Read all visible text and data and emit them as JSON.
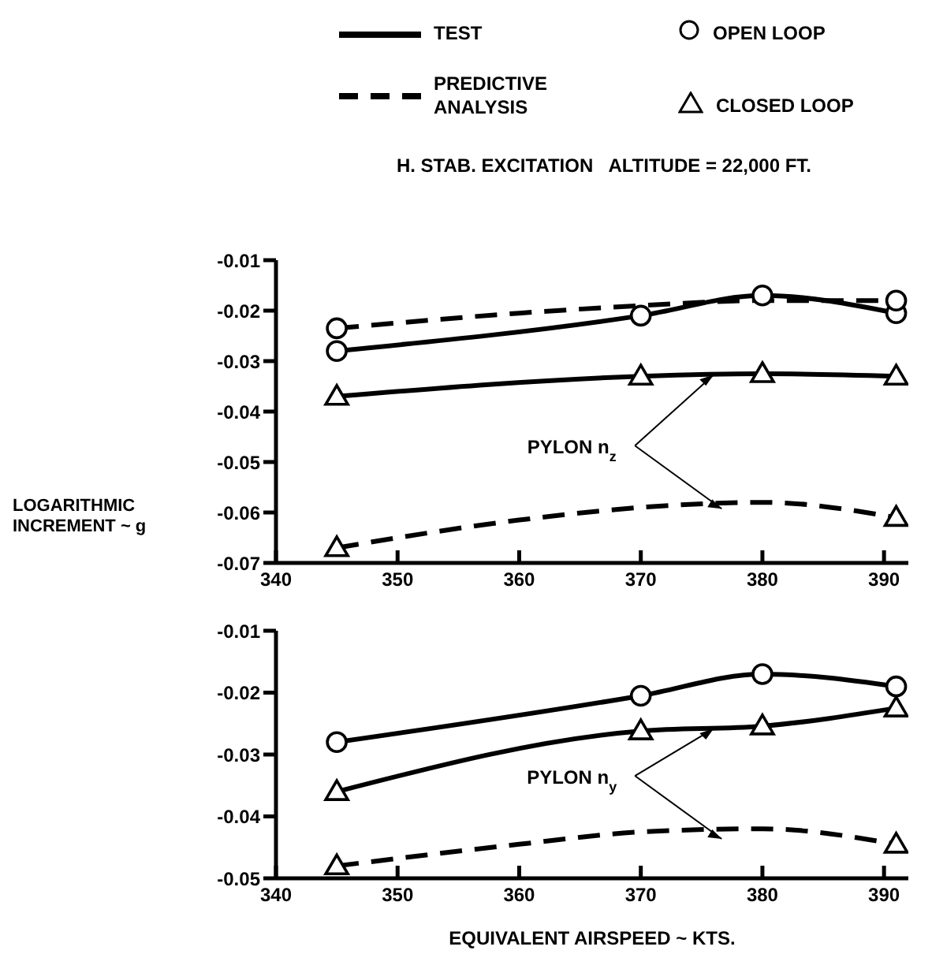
{
  "chart_data": [
    {
      "type": "line",
      "title": "H. STAB. EXCITATION   ALTITUDE = 22,000 FT.",
      "ylabel": "LOGARITHMIC INCREMENT ~ g",
      "annotations": [
        "TEST",
        "PREDICTIVE ANALYSIS",
        "OPEN LOOP",
        "CLOSED LOOP",
        {
          "text": "PYLON n$_{z}$",
          "x": 376,
          "y": -0.0327
        }
      ],
      "xlim": [
        340,
        392
      ],
      "xticks": [
        340,
        350,
        360,
        370,
        380,
        390
      ],
      "ylim": [
        -0.07,
        -0.01
      ],
      "yticks": [
        -0.01,
        -0.02,
        -0.03,
        -0.04,
        -0.05,
        -0.06,
        -0.07
      ],
      "grid": false,
      "series": [
        {
          "color": "#000000",
          "x": [
            345,
            370,
            380,
            391
          ],
          "values": [
            -0.028,
            -0.021,
            -0.017,
            -0.0205
          ],
          "line_style": "solid",
          "marker": "circle"
        },
        {
          "color": "#000000",
          "x": [
            345,
            370,
            380,
            391
          ],
          "values": [
            -0.037,
            -0.033,
            -0.0325,
            -0.033
          ],
          "line_style": "solid",
          "marker": "triangle"
        },
        {
          "color": "#000000",
          "x": [
            345,
            360,
            370,
            380,
            391
          ],
          "values": [
            -0.0235,
            -0.0205,
            -0.019,
            -0.018,
            -0.018
          ],
          "line_style": "dashed",
          "marker": "none"
        },
        {
          "color": "#000000",
          "x": [
            345,
            360,
            370,
            380,
            391
          ],
          "values": [
            -0.067,
            -0.0615,
            -0.059,
            -0.058,
            -0.061
          ],
          "line_style": "dashed",
          "marker": "none"
        },
        {
          "type": "scatter",
          "color": "#000000",
          "x": [
            345,
            391
          ],
          "values": [
            -0.0235,
            -0.018
          ],
          "marker": "circle"
        },
        {
          "type": "scatter",
          "color": "#000000",
          "x": [
            345,
            391
          ],
          "values": [
            -0.067,
            -0.061
          ],
          "marker": "triangle"
        }
      ]
    },
    {
      "type": "line",
      "xlabel": "EQUIVALENT AIRSPEED ~ KTS.",
      "annotations": [
        {
          "text": "PYLON n$_{y}$",
          "x": 376,
          "y": -0.0258
        }
      ],
      "xlim": [
        340,
        392
      ],
      "xticks": [
        340,
        350,
        360,
        370,
        380,
        390
      ],
      "ylim": [
        -0.05,
        -0.01
      ],
      "yticks": [
        -0.01,
        -0.02,
        -0.03,
        -0.04,
        -0.05
      ],
      "grid": false,
      "series": [
        {
          "color": "#000000",
          "x": [
            345,
            370,
            380,
            391
          ],
          "values": [
            -0.028,
            -0.0205,
            -0.017,
            -0.019
          ],
          "line_style": "solid",
          "marker": "circle"
        },
        {
          "color": "#000000",
          "x": [
            345,
            370,
            380,
            391
          ],
          "values": [
            -0.036,
            -0.0262,
            -0.0254,
            -0.0225
          ],
          "line_style": "solid",
          "marker": "triangle"
        },
        {
          "color": "#000000",
          "x": [
            345,
            360,
            370,
            380,
            391
          ],
          "values": [
            -0.048,
            -0.0445,
            -0.0425,
            -0.042,
            -0.0445
          ],
          "line_style": "dashed",
          "marker": "none"
        },
        {
          "type": "scatter",
          "color": "#000000",
          "x": [
            345,
            391
          ],
          "values": [
            -0.048,
            -0.0445
          ],
          "marker": "triangle"
        }
      ]
    }
  ]
}
